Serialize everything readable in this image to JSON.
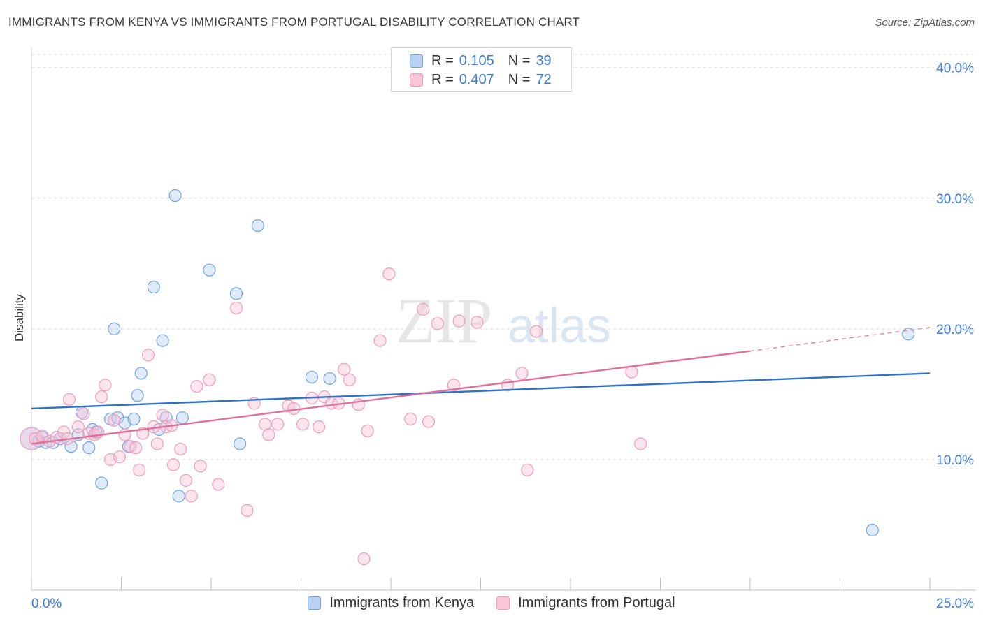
{
  "title": "IMMIGRANTS FROM KENYA VS IMMIGRANTS FROM PORTUGAL DISABILITY CORRELATION CHART",
  "source": "Source: ZipAtlas.com",
  "watermark": {
    "zip": "ZIP",
    "atlas": "atlas"
  },
  "legend": {
    "rows": [
      {
        "r_label": "R =",
        "r_value": "0.105",
        "n_label": "N =",
        "n_value": "39"
      },
      {
        "r_label": "R =",
        "r_value": "0.407",
        "n_label": "N =",
        "n_value": "72"
      }
    ]
  },
  "chart_data": {
    "type": "scatter",
    "title": "IMMIGRANTS FROM KENYA VS IMMIGRANTS FROM PORTUGAL DISABILITY CORRELATION CHART",
    "xlabel": "",
    "ylabel": "Disability",
    "xlim": [
      0,
      25
    ],
    "ylim": [
      0,
      41
    ],
    "x_tick_labels": [
      "0.0%",
      "25.0%"
    ],
    "y_ticks": [
      10,
      20,
      30,
      40
    ],
    "y_tick_labels": [
      "10.0%",
      "20.0%",
      "30.0%",
      "40.0%"
    ],
    "grid": true,
    "legend_placement": "top-center",
    "series": [
      {
        "name": "Immigrants from Kenya",
        "color": "#6fa3e0",
        "fill": "#b9d1f3",
        "line_color": "#2e72cc",
        "trend": {
          "x": [
            0,
            25
          ],
          "y": [
            13.9,
            16.6
          ]
        },
        "points": [
          [
            0.1,
            11.6
          ],
          [
            0.2,
            11.4
          ],
          [
            0.3,
            11.7
          ],
          [
            0.4,
            11.3
          ],
          [
            0.6,
            11.3
          ],
          [
            0.8,
            11.6
          ],
          [
            1.1,
            11.0
          ],
          [
            1.3,
            11.9
          ],
          [
            1.4,
            13.6
          ],
          [
            1.6,
            10.9
          ],
          [
            1.7,
            12.3
          ],
          [
            1.8,
            12.1
          ],
          [
            1.95,
            8.2
          ],
          [
            2.2,
            13.1
          ],
          [
            2.3,
            20.0
          ],
          [
            2.4,
            13.2
          ],
          [
            2.6,
            12.8
          ],
          [
            2.7,
            11.0
          ],
          [
            2.85,
            13.1
          ],
          [
            2.95,
            14.9
          ],
          [
            3.05,
            16.6
          ],
          [
            3.4,
            23.2
          ],
          [
            3.55,
            12.3
          ],
          [
            3.65,
            19.1
          ],
          [
            3.75,
            13.2
          ],
          [
            4.0,
            30.2
          ],
          [
            4.1,
            7.2
          ],
          [
            4.2,
            13.2
          ],
          [
            4.95,
            24.5
          ],
          [
            5.7,
            22.7
          ],
          [
            5.8,
            11.2
          ],
          [
            6.3,
            27.9
          ],
          [
            7.8,
            16.3
          ],
          [
            8.3,
            16.2
          ],
          [
            24.4,
            19.6
          ],
          [
            23.4,
            4.6
          ]
        ],
        "big_point": [
          0.0,
          11.6
        ]
      },
      {
        "name": "Immigrants from Portugal",
        "color": "#f09bb8",
        "fill": "#f8c6d6",
        "line_color": "#e0709a",
        "trend": {
          "x": [
            0,
            20
          ],
          "y": [
            11.2,
            18.3
          ]
        },
        "trend_dashed": {
          "x": [
            20,
            25
          ],
          "y": [
            18.3,
            20.1
          ]
        },
        "points": [
          [
            0.1,
            11.6
          ],
          [
            0.3,
            11.8
          ],
          [
            0.5,
            11.4
          ],
          [
            0.7,
            11.7
          ],
          [
            0.9,
            12.1
          ],
          [
            1.0,
            11.6
          ],
          [
            1.05,
            14.6
          ],
          [
            1.3,
            12.5
          ],
          [
            1.45,
            13.5
          ],
          [
            1.6,
            12.0
          ],
          [
            1.75,
            11.9
          ],
          [
            1.85,
            12.1
          ],
          [
            1.95,
            14.8
          ],
          [
            2.05,
            15.7
          ],
          [
            2.2,
            10.0
          ],
          [
            2.3,
            13.0
          ],
          [
            2.45,
            10.2
          ],
          [
            2.6,
            11.9
          ],
          [
            2.75,
            11.0
          ],
          [
            2.9,
            10.9
          ],
          [
            3.0,
            9.2
          ],
          [
            3.1,
            12.0
          ],
          [
            3.25,
            18.0
          ],
          [
            3.4,
            12.5
          ],
          [
            3.5,
            11.2
          ],
          [
            3.65,
            13.4
          ],
          [
            3.75,
            12.5
          ],
          [
            3.9,
            12.6
          ],
          [
            3.95,
            9.6
          ],
          [
            4.15,
            10.8
          ],
          [
            4.3,
            8.4
          ],
          [
            4.45,
            7.2
          ],
          [
            4.6,
            15.6
          ],
          [
            4.7,
            9.5
          ],
          [
            4.95,
            16.1
          ],
          [
            5.2,
            8.1
          ],
          [
            5.7,
            21.6
          ],
          [
            6.0,
            6.1
          ],
          [
            6.2,
            14.3
          ],
          [
            6.5,
            12.7
          ],
          [
            6.6,
            11.9
          ],
          [
            6.85,
            12.7
          ],
          [
            7.15,
            14.1
          ],
          [
            7.3,
            13.9
          ],
          [
            7.55,
            12.7
          ],
          [
            7.8,
            14.7
          ],
          [
            8.0,
            12.5
          ],
          [
            8.15,
            14.8
          ],
          [
            8.35,
            14.3
          ],
          [
            8.55,
            14.3
          ],
          [
            8.7,
            16.9
          ],
          [
            8.85,
            16.1
          ],
          [
            9.1,
            14.2
          ],
          [
            9.25,
            2.4
          ],
          [
            9.35,
            12.2
          ],
          [
            9.7,
            19.1
          ],
          [
            9.95,
            24.2
          ],
          [
            10.55,
            13.1
          ],
          [
            10.9,
            21.5
          ],
          [
            11.05,
            12.9
          ],
          [
            11.3,
            20.4
          ],
          [
            11.75,
            15.7
          ],
          [
            11.9,
            20.6
          ],
          [
            12.4,
            20.5
          ],
          [
            13.25,
            15.7
          ],
          [
            13.65,
            16.6
          ],
          [
            13.8,
            9.2
          ],
          [
            14.05,
            19.8
          ],
          [
            16.7,
            16.7
          ],
          [
            16.95,
            11.2
          ]
        ],
        "big_point": [
          0.0,
          11.6
        ]
      }
    ]
  },
  "bottom_legend": {
    "items": [
      {
        "label": "Immigrants from Kenya"
      },
      {
        "label": "Immigrants from Portugal"
      }
    ]
  }
}
